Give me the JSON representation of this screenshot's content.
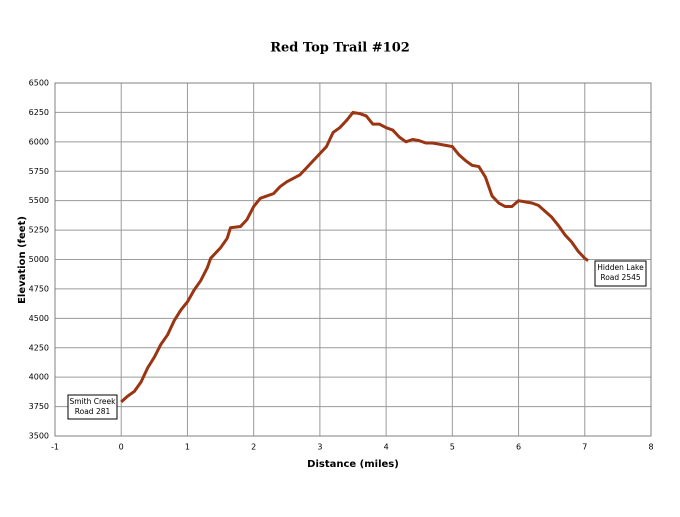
{
  "chart_data": {
    "type": "line",
    "title": "Red Top Trail #102",
    "x_label": "Distance (miles)",
    "y_label": "Elevation (feet)",
    "x": [
      0,
      0.1,
      0.2,
      0.3,
      0.4,
      0.5,
      0.6,
      0.7,
      0.8,
      0.9,
      1.0,
      1.1,
      1.2,
      1.3,
      1.35,
      1.5,
      1.6,
      1.65,
      1.8,
      1.9,
      2.0,
      2.1,
      2.2,
      2.3,
      2.4,
      2.5,
      2.6,
      2.7,
      2.8,
      2.9,
      3.0,
      3.1,
      3.2,
      3.3,
      3.4,
      3.5,
      3.6,
      3.7,
      3.8,
      3.9,
      4.0,
      4.1,
      4.2,
      4.3,
      4.4,
      4.5,
      4.6,
      4.7,
      4.8,
      4.9,
      5.0,
      5.1,
      5.2,
      5.3,
      5.4,
      5.5,
      5.6,
      5.7,
      5.8,
      5.9,
      6.0,
      6.1,
      6.2,
      6.3,
      6.4,
      6.5,
      6.6,
      6.7,
      6.8,
      6.9,
      7.0,
      7.05
    ],
    "series": [
      {
        "color": "#9a3412",
        "values": [
          3790,
          3840,
          3880,
          3960,
          4080,
          4170,
          4280,
          4360,
          4480,
          4570,
          4640,
          4740,
          4820,
          4930,
          5010,
          5100,
          5180,
          5270,
          5280,
          5340,
          5450,
          5520,
          5540,
          5560,
          5620,
          5660,
          5690,
          5720,
          5780,
          5840,
          5900,
          5960,
          6080,
          6120,
          6180,
          6250,
          6240,
          6220,
          6150,
          6150,
          6120,
          6100,
          6040,
          6000,
          6020,
          6010,
          5990,
          5990,
          5980,
          5970,
          5960,
          5890,
          5840,
          5800,
          5790,
          5700,
          5540,
          5480,
          5450,
          5450,
          5500,
          5490,
          5480,
          5460,
          5410,
          5360,
          5290,
          5210,
          5150,
          5070,
          5010,
          4990
        ]
      }
    ],
    "xlim": [
      -1,
      8
    ],
    "xticks": [
      -1,
      0,
      1,
      2,
      3,
      4,
      5,
      6,
      7,
      8
    ],
    "ylim": [
      3500,
      6500
    ],
    "yticks": [
      3500,
      3750,
      4000,
      4250,
      4500,
      4750,
      5000,
      5250,
      5500,
      5750,
      6000,
      6250,
      6500
    ],
    "grid": true,
    "annotations": [
      {
        "lines": [
          "Smith Creek",
          "Road 281"
        ]
      },
      {
        "lines": [
          "Hidden Lake",
          "Road 2545"
        ]
      }
    ]
  }
}
